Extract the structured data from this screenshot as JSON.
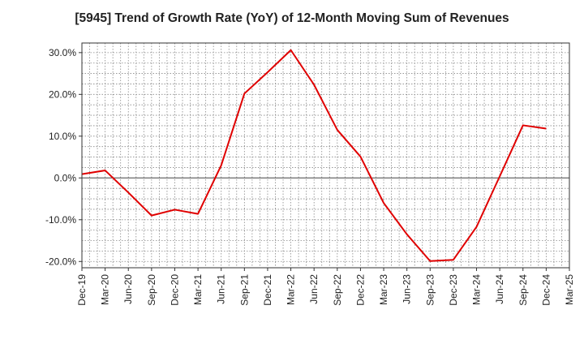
{
  "chart_data": {
    "type": "line",
    "title": "[5945]  Trend of Growth Rate (YoY) of 12-Month Moving Sum of Revenues",
    "xlabel": "",
    "ylabel": "",
    "x_ticks": [
      "Dec-19",
      "Mar-20",
      "Jun-20",
      "Sep-20",
      "Dec-20",
      "Mar-21",
      "Jun-21",
      "Sep-21",
      "Dec-21",
      "Mar-22",
      "Jun-22",
      "Sep-22",
      "Dec-22",
      "Mar-23",
      "Jun-23",
      "Sep-23",
      "Dec-23",
      "Mar-24",
      "Jun-24",
      "Sep-24",
      "Dec-24",
      "Mar-25"
    ],
    "y_ticks": [
      -20,
      -10,
      0,
      10,
      20,
      30
    ],
    "y_tick_labels": [
      "-20.0%",
      "-10.0%",
      "0.0%",
      "10.0%",
      "20.0%",
      "30.0%"
    ],
    "ylim": [
      -21.5,
      32.3
    ],
    "grid": true,
    "line_color": "#e00000",
    "series": [
      {
        "values": [
          0.9,
          1.8,
          -3.5,
          -9.0,
          -7.6,
          -8.6,
          3.0,
          20.2,
          25.3,
          30.6,
          22.3,
          11.5,
          5.1,
          -6.0,
          -13.5,
          -19.9,
          -19.6,
          -11.7,
          0.4,
          12.6,
          11.8
        ]
      }
    ]
  }
}
